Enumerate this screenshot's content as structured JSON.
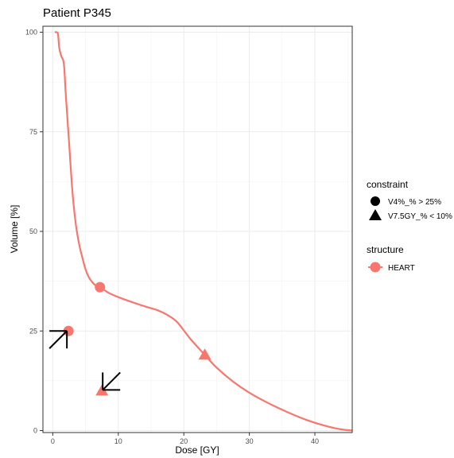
{
  "chart_data": {
    "type": "line",
    "title": "Patient P345",
    "xlabel": "Dose [GY]",
    "ylabel": "Volume [%]",
    "xlim": [
      -1.5,
      45.7
    ],
    "ylim": [
      -0.5,
      101.5
    ],
    "x_ticks": [
      0,
      10,
      20,
      30,
      40
    ],
    "y_ticks": [
      0,
      25,
      50,
      75,
      100
    ],
    "x_tick_labels": [
      "0",
      "10",
      "20",
      "30",
      "40"
    ],
    "y_tick_labels": [
      "0",
      "25",
      "50",
      "75",
      "100"
    ],
    "grid": true,
    "legend_position": "right",
    "series": [
      {
        "name": "HEART",
        "color": "#F8766D",
        "x": [
          0.3,
          0.6,
          0.8,
          1.0,
          1.3,
          1.7,
          2.0,
          2.5,
          3.0,
          3.5,
          4.0,
          4.5,
          5.0,
          5.5,
          6.0,
          6.5,
          7.2,
          8.5,
          10,
          12,
          14,
          16,
          17.5,
          19,
          21,
          23.2,
          25,
          27.5,
          30,
          33,
          36,
          39,
          42,
          44,
          45.7
        ],
        "y": [
          100,
          100,
          99.5,
          96,
          94,
          92,
          84,
          72,
          60,
          52,
          47,
          43.5,
          40.5,
          38.5,
          37.3,
          36.5,
          36,
          34.6,
          33.5,
          32.3,
          31.2,
          30.2,
          29,
          27.2,
          23,
          19,
          15.8,
          12.3,
          9.5,
          6.8,
          4.5,
          2.5,
          1.0,
          0.3,
          0
        ]
      }
    ],
    "constraint_points": [
      {
        "x": 7.2,
        "y": 36,
        "shape": "circle",
        "constraint": "V4%_% > 25%"
      },
      {
        "x": 2.4,
        "y": 25,
        "shape": "circle",
        "constraint": "V4%_% > 25%"
      },
      {
        "x": 23.2,
        "y": 19,
        "shape": "triangle",
        "constraint": "V7.5GY_% < 10%"
      },
      {
        "x": 7.5,
        "y": 10,
        "shape": "triangle",
        "constraint": "V7.5GY_% < 10%"
      }
    ],
    "arrows": [
      {
        "direction": "up-right",
        "target_x": 2.4,
        "target_y": 25
      },
      {
        "direction": "down-left",
        "target_x": 7.5,
        "target_y": 10
      }
    ],
    "legend": {
      "constraint": {
        "title": "constraint",
        "items": [
          {
            "label": "V4%_% > 25%",
            "shape": "circle"
          },
          {
            "label": "V7.5GY_% < 10%",
            "shape": "triangle"
          }
        ]
      },
      "structure": {
        "title": "structure",
        "items": [
          {
            "label": "HEART",
            "color": "#F8766D"
          }
        ]
      }
    }
  }
}
